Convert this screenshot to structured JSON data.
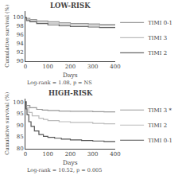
{
  "chart_data": [
    {
      "type": "step",
      "title": "LOW-RISK",
      "xlabel": "Days",
      "ylabel": "Cumulative survival (%)",
      "xlim": [
        0,
        400
      ],
      "ylim": [
        90,
        101.5
      ],
      "xticks": [
        0,
        100,
        200,
        300,
        400
      ],
      "yticks": [
        90,
        92,
        94,
        96,
        98,
        100
      ],
      "grid": false,
      "legend": "right",
      "annotation": "Log-rank = 1.08, p = NS",
      "series": [
        {
          "name": "TIMI 0-1",
          "color": "#999999",
          "x": [
            0,
            5,
            20,
            50,
            100,
            150,
            200,
            280,
            330,
            400
          ],
          "values": [
            100,
            99.8,
            99.5,
            99.2,
            99.0,
            98.8,
            98.6,
            98.5,
            98.4,
            98.3
          ]
        },
        {
          "name": "TIMI 3",
          "color": "#bbbbbb",
          "x": [
            0,
            5,
            20,
            50,
            100,
            150,
            200,
            280,
            330,
            400
          ],
          "values": [
            100,
            99.5,
            99.2,
            98.9,
            98.7,
            98.5,
            98.3,
            98.2,
            98.1,
            98.0
          ]
        },
        {
          "name": "TIMI 2",
          "color": "#666666",
          "x": [
            0,
            5,
            20,
            50,
            100,
            150,
            200,
            280,
            330,
            400
          ],
          "values": [
            100,
            99.3,
            99.0,
            98.6,
            98.3,
            98.1,
            97.9,
            97.8,
            97.7,
            97.6
          ]
        }
      ]
    },
    {
      "type": "step",
      "title": "HIGH-RISK",
      "xlabel": "Days",
      "ylabel": "Cumulative survival (%)",
      "xlim": [
        0,
        400
      ],
      "ylim": [
        80,
        101.5
      ],
      "xticks": [
        0,
        100,
        200,
        300,
        400
      ],
      "yticks": [
        80,
        85,
        90,
        95,
        100
      ],
      "grid": false,
      "legend": "right",
      "annotation": "Log-rank = 10.52, p = 0.005",
      "series": [
        {
          "name": "TIMI 3 *",
          "color": "#999999",
          "x": [
            0,
            5,
            20,
            50,
            75,
            100,
            150,
            200,
            300,
            350,
            400
          ],
          "values": [
            100,
            98.5,
            97.5,
            96.8,
            96.5,
            96.3,
            96.1,
            96.0,
            95.8,
            95.7,
            95.6
          ]
        },
        {
          "name": "TIMI 2",
          "color": "#bbbbbb",
          "x": [
            0,
            5,
            15,
            30,
            60,
            80,
            100,
            150,
            200,
            300,
            350,
            400
          ],
          "values": [
            100,
            97.5,
            95.5,
            94.0,
            93.0,
            92.5,
            92.0,
            91.5,
            91.2,
            90.8,
            90.6,
            90.4
          ]
        },
        {
          "name": "TIMI 0-1",
          "color": "#555555",
          "x": [
            0,
            3,
            7,
            15,
            25,
            40,
            60,
            80,
            100,
            130,
            160,
            200,
            250,
            300,
            350,
            400
          ],
          "values": [
            100,
            97.0,
            94.5,
            91.5,
            89.5,
            87.5,
            86.0,
            85.2,
            84.8,
            84.4,
            84.0,
            83.7,
            83.4,
            83.2,
            83.0,
            82.8
          ]
        }
      ]
    }
  ]
}
